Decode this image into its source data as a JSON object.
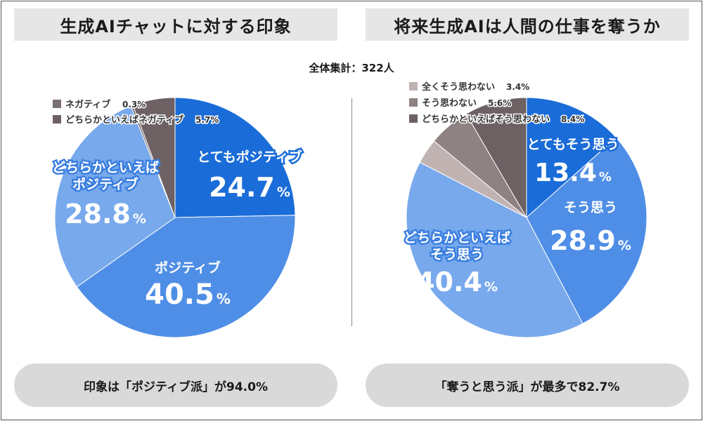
{
  "total": "全体集計：322人",
  "chart_data": [
    {
      "type": "pie",
      "title": "生成AIチャットに対する印象",
      "summary": "印象は「ポジティブ派」が94.0%",
      "categories": [
        "とてもポジティブ",
        "ポジティブ",
        "どちらかといえばポジティブ",
        "ネガティブ",
        "どちらかといえばネガティブ"
      ],
      "values": [
        24.7,
        40.5,
        28.8,
        0.3,
        5.7
      ],
      "display_values": [
        "24.7",
        "40.5",
        "28.8",
        "0.3%",
        "5.7%"
      ],
      "percent_sign": "%",
      "colors": [
        "#1a6cd8",
        "#4f8ee6",
        "#78a9ec",
        "#7a7072",
        "#6e6163"
      ],
      "labels": [
        {
          "lines": [
            "とてもポジティブ"
          ],
          "placement": "inside"
        },
        {
          "lines": [
            "ポジティブ"
          ],
          "placement": "inside"
        },
        {
          "lines": [
            "どちらかといえば",
            "ポジティブ"
          ],
          "placement": "inside"
        },
        {
          "lines": [
            "ネガティブ"
          ],
          "placement": "legend"
        },
        {
          "lines": [
            "どちらかといえばネガティブ"
          ],
          "placement": "legend"
        }
      ]
    },
    {
      "type": "pie",
      "title": "将来生成AIは人間の仕事を奪うか",
      "summary": "「奪うと思う派」が最多で82.7%",
      "categories": [
        "とてもそう思う",
        "そう思う",
        "どちらかといえばそう思う",
        "全くそう思わない",
        "そう思わない",
        "どちらかといえばそう思わない"
      ],
      "values": [
        13.4,
        28.9,
        40.4,
        3.4,
        5.6,
        8.4
      ],
      "display_values": [
        "13.4",
        "28.9",
        "40.4",
        "3.4%",
        "5.6%",
        "8.4%"
      ],
      "percent_sign": "%",
      "colors": [
        "#1a6cd8",
        "#4f8ee6",
        "#78a9ec",
        "#c2b3b3",
        "#8f8283",
        "#6e6163"
      ],
      "labels": [
        {
          "lines": [
            "とてもそう思う"
          ],
          "placement": "inside"
        },
        {
          "lines": [
            "そう思う"
          ],
          "placement": "inside"
        },
        {
          "lines": [
            "どちらかといえば",
            "そう思う"
          ],
          "placement": "inside"
        },
        {
          "lines": [
            "全くそう思わない"
          ],
          "placement": "legend"
        },
        {
          "lines": [
            "そう思わない"
          ],
          "placement": "legend"
        },
        {
          "lines": [
            "どちらかといえばそう思わない"
          ],
          "placement": "legend"
        }
      ]
    }
  ]
}
